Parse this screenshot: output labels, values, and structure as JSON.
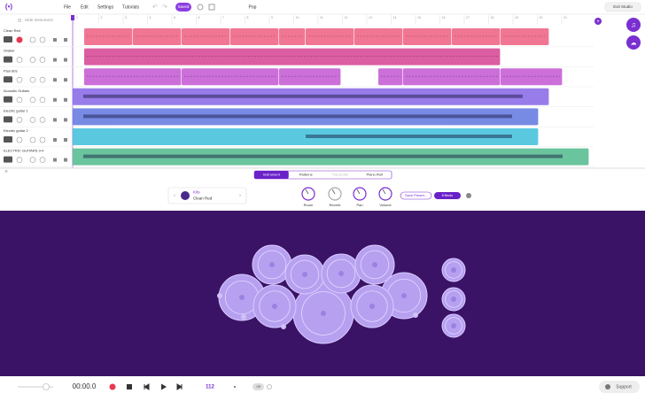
{
  "menu": [
    "File",
    "Edit",
    "Settings",
    "Tutorials"
  ],
  "status": "Saved",
  "project_title": "Pop",
  "exit": "Exit Studio",
  "hide_instrument": "Hide Instrument",
  "ruler": [
    1,
    2,
    3,
    4,
    5,
    6,
    7,
    8,
    9,
    10,
    11,
    12,
    13,
    14,
    15,
    16,
    17,
    18,
    19,
    20,
    21
  ],
  "tracks": [
    {
      "name": "Clean Red"
    },
    {
      "name": "Shaker"
    },
    {
      "name": "Paul 80s"
    },
    {
      "name": "Acoustic Guitars"
    },
    {
      "name": "Electric guitar 1"
    },
    {
      "name": "Electric guitar 2"
    },
    {
      "name": "ELECTRIC GUITARS 3-4"
    }
  ],
  "tabs": [
    "Instrument",
    "Patterns",
    "Transcribe",
    "Piano Roll"
  ],
  "preset": {
    "category": "Kits",
    "name": "Clean Red"
  },
  "knobs": [
    "Room",
    "Reverb",
    "Pan",
    "Volume"
  ],
  "buttons": {
    "save_preset": "Save Preset...",
    "effects": "Effects"
  },
  "transport": {
    "time": "00:00.0",
    "tempo": "112",
    "metronome": "Off"
  },
  "support": "Support"
}
